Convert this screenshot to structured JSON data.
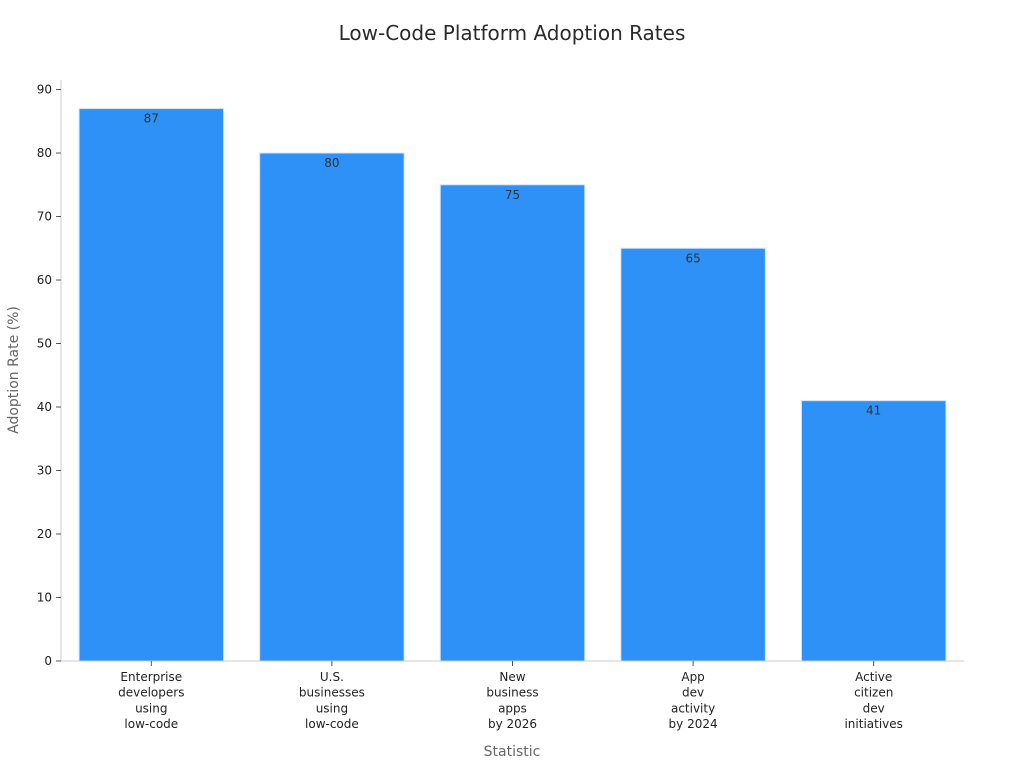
{
  "chart_data": {
    "type": "bar",
    "title": "Low-Code Platform Adoption Rates",
    "xlabel": "Statistic",
    "ylabel": "Adoption Rate (%)",
    "categories": [
      "Enterprise developers using low-code",
      "U.S. businesses using low-code",
      "New business apps by 2026",
      "App dev activity by 2024",
      "Active citizen dev initiatives"
    ],
    "category_lines": [
      [
        "Enterprise",
        "developers",
        "using",
        "low-code"
      ],
      [
        "U.S.",
        "businesses",
        "using",
        "low-code"
      ],
      [
        "New",
        "business",
        "apps",
        "by 2026"
      ],
      [
        "App",
        "dev",
        "activity",
        "by 2024"
      ],
      [
        "Active",
        "citizen",
        "dev",
        "initiatives"
      ]
    ],
    "values": [
      87,
      80,
      75,
      65,
      41
    ],
    "data_labels": [
      "87",
      "80",
      "75",
      "65",
      "41"
    ],
    "yticks": [
      "0",
      "10",
      "20",
      "30",
      "40",
      "50",
      "60",
      "70",
      "80",
      "90"
    ],
    "ylim": [
      0,
      91.5
    ],
    "grid": false,
    "legend": "none",
    "colors": {
      "bar": "#2e91f7",
      "bar_edge": "#cfe4fb"
    }
  }
}
